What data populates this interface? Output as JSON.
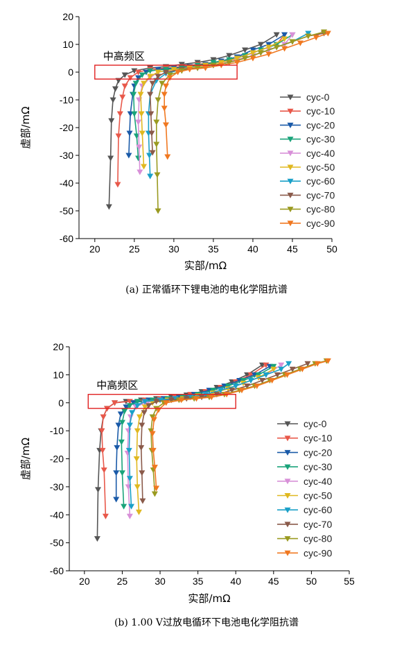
{
  "colors": [
    "#555555",
    "#e8584a",
    "#1a5aa8",
    "#1aa37a",
    "#d890d8",
    "#e0b820",
    "#1aa0c8",
    "#8a5a4a",
    "#9a9a20",
    "#f07820"
  ],
  "chart_data": [
    {
      "type": "scatter",
      "caption": "(a) 正常循环下锂电池的电化学阻抗谱",
      "xlabel": "实部/mΩ",
      "ylabel": "虚部/mΩ",
      "xlim": [
        18,
        50
      ],
      "ylim": [
        -60,
        20
      ],
      "xticks": [
        20,
        25,
        30,
        35,
        40,
        45,
        50
      ],
      "yticks": [
        -60,
        -50,
        -40,
        -30,
        -20,
        -10,
        0,
        10,
        20
      ],
      "legend_position": "right",
      "region": {
        "label": "中高频区",
        "x": [
          20,
          38
        ],
        "y": [
          -2.5,
          2.5
        ]
      },
      "series": [
        {
          "name": "cyc-0",
          "x": [
            21.8,
            22.0,
            22.1,
            22.3,
            22.6,
            23.0,
            23.8,
            25,
            27,
            29,
            31,
            33,
            35,
            37,
            39,
            41,
            43
          ],
          "y": [
            -48.5,
            -31,
            -17.5,
            -10,
            -6,
            -3,
            -1,
            0.5,
            1.5,
            2,
            2.8,
            3.5,
            4.5,
            6,
            8,
            10,
            13.5
          ]
        },
        {
          "name": "cyc-10",
          "x": [
            22.9,
            23.0,
            23.2,
            23.5,
            23.8,
            24.5,
            25.5,
            27,
            29,
            31,
            33,
            35,
            37,
            39,
            41,
            43,
            44
          ],
          "y": [
            -40.5,
            -23,
            -15,
            -9,
            -5,
            -2,
            0,
            1,
            1.5,
            2,
            2.8,
            3.5,
            4.5,
            6,
            8,
            10,
            13.5
          ]
        },
        {
          "name": "cyc-20",
          "x": [
            24.3,
            24.4,
            24.5,
            24.8,
            25.0,
            25.5,
            26.5,
            28,
            30,
            32,
            34,
            36,
            38,
            40,
            42,
            44
          ],
          "y": [
            -30,
            -22,
            -15,
            -8,
            -5,
            -2,
            0,
            1,
            1.5,
            2,
            2.8,
            4,
            5.5,
            8,
            10,
            13.5
          ]
        },
        {
          "name": "cyc-30",
          "x": [
            25.5,
            25.3,
            25.0,
            24.9,
            25.2,
            26,
            27,
            29,
            31,
            33,
            35,
            37,
            39,
            41,
            43,
            45
          ],
          "y": [
            -31,
            -23,
            -15,
            -8,
            -4,
            -1,
            0.5,
            1,
            1.5,
            2.5,
            3.5,
            4.5,
            6,
            8,
            10,
            13.5
          ]
        },
        {
          "name": "cyc-40",
          "x": [
            25.7,
            25.6,
            25.5,
            25.6,
            26,
            27,
            28,
            30,
            32,
            34,
            36,
            38,
            40,
            42,
            44,
            45
          ],
          "y": [
            -36,
            -27,
            -18,
            -10,
            -5,
            -2,
            0,
            1,
            1.5,
            2.5,
            3.5,
            4.5,
            6,
            8,
            10,
            13.5
          ]
        },
        {
          "name": "cyc-50",
          "x": [
            26.2,
            26.0,
            25.9,
            25.8,
            26.2,
            27,
            28,
            30,
            32,
            34,
            36,
            38,
            40,
            42,
            44
          ],
          "y": [
            -34,
            -22,
            -15,
            -8,
            -4,
            -1.5,
            0,
            1,
            1.5,
            2.5,
            3.5,
            5,
            7,
            9,
            12
          ]
        },
        {
          "name": "cyc-60",
          "x": [
            27.0,
            26.9,
            26.8,
            26.8,
            27.0,
            27.8,
            29,
            31,
            33,
            35,
            37,
            39,
            41,
            43,
            45,
            47
          ],
          "y": [
            -37.5,
            -30,
            -22,
            -15,
            -8,
            -3,
            -0.5,
            1,
            1.5,
            2.5,
            3.5,
            5,
            7,
            9,
            11,
            14
          ]
        },
        {
          "name": "cyc-70",
          "x": [
            27.3,
            27.2,
            27.1,
            27.0,
            27.3,
            28,
            29,
            31,
            33,
            35,
            37,
            39,
            41,
            43,
            45,
            47,
            49
          ],
          "y": [
            -29,
            -22,
            -15,
            -8,
            -4,
            -1.5,
            0,
            1,
            1.5,
            2.5,
            3.5,
            5,
            7,
            9,
            11,
            13,
            14
          ]
        },
        {
          "name": "cyc-80",
          "x": [
            28.0,
            27.9,
            27.8,
            27.8,
            28,
            28.5,
            29.5,
            31,
            33,
            35,
            37,
            39,
            41,
            43,
            45,
            47,
            49
          ],
          "y": [
            -50,
            -37,
            -26,
            -18,
            -10,
            -4,
            -1,
            0.5,
            1.5,
            2.5,
            3.5,
            5,
            7,
            9,
            11,
            13,
            14.5
          ]
        },
        {
          "name": "cyc-90",
          "x": [
            29.2,
            29.0,
            28.8,
            28.8,
            29,
            29.5,
            30.5,
            32,
            34,
            36,
            38,
            40,
            42,
            44,
            46,
            48,
            49.5
          ],
          "y": [
            -30.5,
            -19,
            -13,
            -8,
            -5,
            -2,
            0,
            1,
            1.5,
            2.5,
            3.5,
            5,
            6.5,
            8.5,
            10.5,
            12.5,
            14
          ]
        }
      ]
    },
    {
      "type": "scatter",
      "caption": "(b) 1.00 V过放电循环下电池电化学阻抗谱",
      "xlabel": "实部/mΩ",
      "ylabel": "虚部/mΩ",
      "xlim": [
        18,
        55
      ],
      "ylim": [
        -60,
        20
      ],
      "xticks": [
        20,
        25,
        30,
        35,
        40,
        45,
        50,
        55
      ],
      "yticks": [
        -60,
        -50,
        -40,
        -30,
        -20,
        -10,
        0,
        10,
        20
      ],
      "legend_position": "right",
      "region": {
        "label": "中高频区",
        "x": [
          20.5,
          40
        ],
        "y": [
          -2,
          3
        ]
      },
      "series": [
        {
          "name": "cyc-0",
          "x": [
            21.7,
            21.8,
            22.0,
            22.2,
            22.5,
            23.0,
            24,
            25.5,
            27.5,
            29.5,
            31.5,
            33.5,
            35.5,
            37.5,
            39.5,
            41.5,
            43.5
          ],
          "y": [
            -48.5,
            -31,
            -17,
            -10,
            -5,
            -2,
            0,
            0.5,
            1,
            1.5,
            2,
            2.8,
            4,
            5.5,
            7.5,
            10,
            13.5
          ]
        },
        {
          "name": "cyc-10",
          "x": [
            22.8,
            22.6,
            22.4,
            22.3,
            22.5,
            23,
            24,
            26,
            28,
            30,
            32,
            34,
            36,
            38,
            40,
            42,
            44
          ],
          "y": [
            -40.5,
            -24,
            -17,
            -10,
            -5,
            -2,
            0,
            0.5,
            1,
            1.5,
            2,
            3,
            4,
            5.5,
            7.5,
            10,
            13.5
          ]
        },
        {
          "name": "cyc-20",
          "x": [
            24.2,
            24.2,
            24.3,
            24.5,
            24.8,
            25.5,
            26.5,
            28.5,
            30.5,
            32.5,
            34.5,
            36.5,
            38.5,
            40.5,
            42.5,
            44.5
          ],
          "y": [
            -34.5,
            -25,
            -16,
            -8,
            -4,
            -1.5,
            0,
            1,
            1.5,
            2,
            3,
            4.5,
            6,
            8,
            10,
            13
          ]
        },
        {
          "name": "cyc-30",
          "x": [
            25.2,
            25.0,
            24.9,
            25.0,
            25.3,
            26,
            27,
            29,
            31,
            33,
            35,
            37,
            39,
            41,
            43,
            45
          ],
          "y": [
            -37,
            -25,
            -14,
            -7,
            -3,
            -1,
            0.5,
            1,
            1.5,
            2,
            3,
            4.5,
            6,
            8,
            10,
            13
          ]
        },
        {
          "name": "cyc-40",
          "x": [
            26.0,
            25.8,
            25.7,
            25.8,
            26.1,
            26.8,
            28,
            30,
            32,
            34,
            36,
            38,
            40,
            42,
            44,
            46
          ],
          "y": [
            -40.5,
            -30,
            -18,
            -10,
            -5,
            -1.5,
            0,
            1,
            1.5,
            2,
            3,
            4.5,
            6,
            8,
            10,
            13.5
          ]
        },
        {
          "name": "cyc-50",
          "x": [
            27.2,
            27.0,
            26.9,
            27.0,
            27.3,
            28,
            29,
            31,
            33,
            35,
            37,
            39,
            41,
            43,
            45
          ],
          "y": [
            -39,
            -30,
            -20,
            -10,
            -5,
            -1.5,
            0,
            1,
            1.5,
            2.5,
            3.5,
            5,
            7,
            9,
            12
          ]
        },
        {
          "name": "cyc-60",
          "x": [
            26.2,
            26.0,
            25.9,
            26.0,
            26.3,
            27,
            28,
            30,
            32,
            34,
            36,
            38,
            40,
            42,
            44,
            46,
            47
          ],
          "y": [
            -37,
            -27,
            -17,
            -8,
            -3.5,
            -1,
            0.5,
            1,
            1.5,
            2,
            3,
            4.5,
            6,
            8,
            10,
            12,
            14
          ]
        },
        {
          "name": "cyc-70",
          "x": [
            27.7,
            27.6,
            27.5,
            27.6,
            27.9,
            28.5,
            29.5,
            31.5,
            33.5,
            35.5,
            37.5,
            39.5,
            41.5,
            43.5,
            45.5,
            47.5,
            49.5
          ],
          "y": [
            -35,
            -25,
            -16,
            -8,
            -3.5,
            -1,
            0.5,
            1,
            1.5,
            2,
            3,
            4.5,
            6,
            8,
            10,
            12,
            14
          ]
        },
        {
          "name": "cyc-80",
          "x": [
            29.3,
            29.1,
            28.9,
            28.8,
            29,
            29.5,
            30.5,
            32.5,
            34.5,
            36.5,
            38.5,
            40.5,
            42.5,
            44.5,
            46.5,
            48.5,
            50.5,
            52
          ],
          "y": [
            -32.5,
            -24,
            -17,
            -10,
            -5,
            -2,
            0,
            1,
            1.5,
            2,
            3,
            4.5,
            6,
            8,
            10,
            12,
            14,
            15
          ]
        },
        {
          "name": "cyc-90",
          "x": [
            29.5,
            29.3,
            29.1,
            29.0,
            29.2,
            29.8,
            30.8,
            32.8,
            34.8,
            36.8,
            38.8,
            40.8,
            42.8,
            44.8,
            46.8,
            48.8,
            50.8,
            52.2
          ],
          "y": [
            -30.5,
            -23,
            -17,
            -11,
            -6,
            -2.5,
            0,
            1,
            1.5,
            2,
            3,
            4.5,
            6,
            8,
            10,
            12,
            14,
            15
          ]
        }
      ]
    }
  ]
}
